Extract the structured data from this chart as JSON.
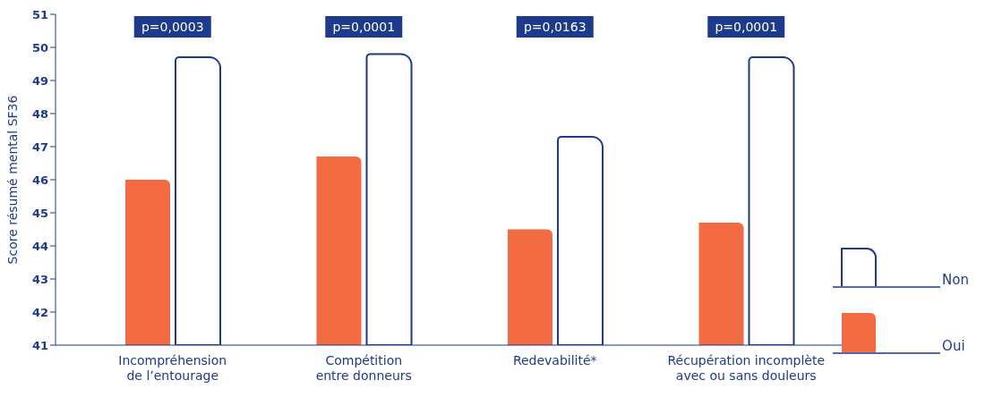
{
  "chart_data": {
    "type": "bar",
    "ylabel": "Score résumé mental SF36",
    "categories": [
      "Incompréhension\nde l’entourage",
      "Compétition\nentre donneurs",
      "Redevabilité*",
      "Récupération incomplète\navec ou sans douleurs"
    ],
    "series": [
      {
        "name": "Oui",
        "color": "#f26b43",
        "values": [
          46.0,
          46.7,
          44.5,
          44.7
        ]
      },
      {
        "name": "Non",
        "color": "#1e3a8a",
        "values": [
          49.7,
          49.8,
          47.3,
          49.7
        ]
      }
    ],
    "ylim": [
      41,
      51
    ],
    "yticks": [
      41,
      42,
      43,
      44,
      45,
      46,
      47,
      48,
      49,
      50,
      51
    ],
    "grid": false,
    "legend": "bottom right",
    "annotations": [
      "p=0,0003",
      "p=0,0001",
      "p=0,0163",
      "p=0,0001"
    ]
  }
}
